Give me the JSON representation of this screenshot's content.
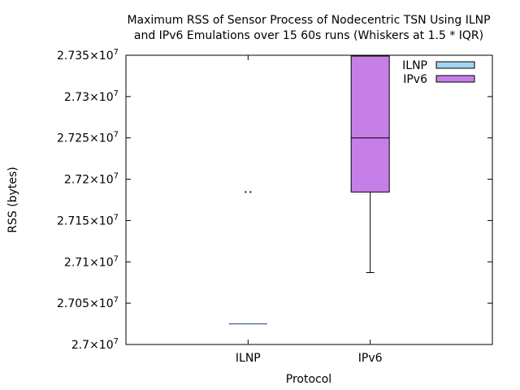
{
  "chart_data": {
    "type": "box",
    "title_lines": [
      "Maximum RSS of Sensor Process of Nodecentric TSN Using ILNP",
      "and IPv6 Emulations over 15 60s runs (Whiskers at 1.5 * IQR)"
    ],
    "xlabel": "Protocol",
    "ylabel": "RSS (bytes)",
    "ylim": [
      27000000,
      27350000
    ],
    "y_ticks": [
      {
        "value": 27000000,
        "mantissa": "2.7"
      },
      {
        "value": 27050000,
        "mantissa": "2.705"
      },
      {
        "value": 27100000,
        "mantissa": "2.71"
      },
      {
        "value": 27150000,
        "mantissa": "2.715"
      },
      {
        "value": 27200000,
        "mantissa": "2.72"
      },
      {
        "value": 27250000,
        "mantissa": "2.725"
      },
      {
        "value": 27300000,
        "mantissa": "2.73"
      },
      {
        "value": 27350000,
        "mantissa": "2.735"
      }
    ],
    "tick_suffix": "×10",
    "tick_exponent": "7",
    "categories": [
      "ILNP",
      "IPv6"
    ],
    "legend_position": "top-right",
    "series": [
      {
        "name": "ILNP",
        "category": "ILNP",
        "color": "#a3d4f0",
        "edge_color": "#1f3b8c",
        "min": 27025000,
        "q1": 27025000,
        "median": 27025000,
        "q3": 27025000,
        "max": 27025000,
        "outliers": [
          27184500,
          27184500
        ]
      },
      {
        "name": "IPv6",
        "category": "IPv6",
        "color": "#c77fe8",
        "edge_color": "#000000",
        "min": 27087000,
        "q1": 27184500,
        "median": 27250000,
        "q3": 27349000,
        "max": 27349000,
        "outliers": []
      }
    ]
  }
}
